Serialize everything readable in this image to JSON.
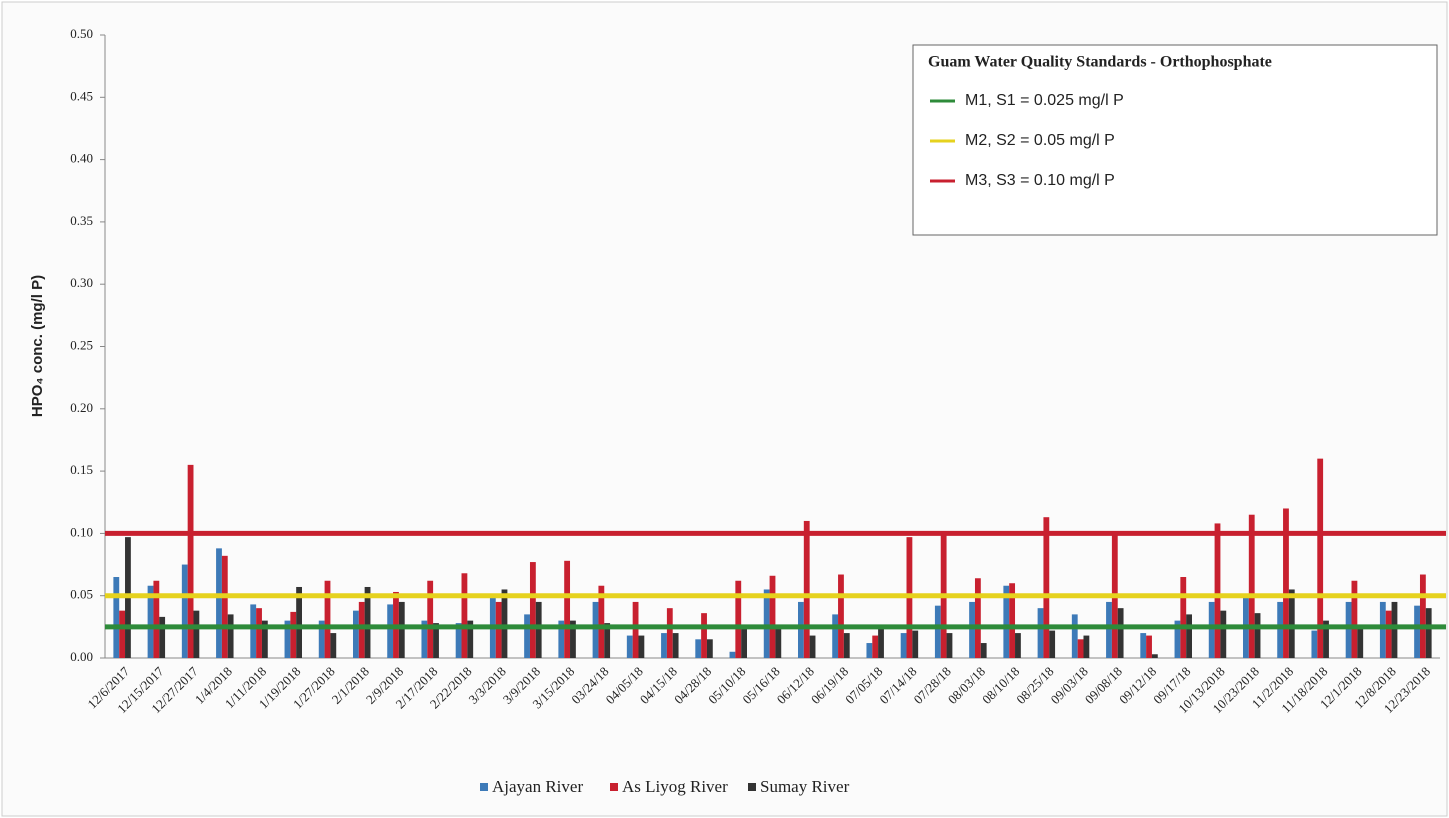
{
  "chart_data": {
    "type": "bar",
    "y_label": "HPO₄ conc. (mg/l P)",
    "legend_title": "Guam Water Quality Standards - Orthophosphate",
    "categories": [
      "12/6/2017",
      "12/15/2017",
      "12/27/2017",
      "1/4/2018",
      "1/11/2018",
      "1/19/2018",
      "1/27/2018",
      "2/1/2018",
      "2/9/2018",
      "2/17/2018",
      "2/22/2018",
      "3/3/2018",
      "3/9/2018",
      "3/15/2018",
      "03/24/18",
      "04/05/18",
      "04/15/18",
      "04/28/18",
      "05/10/18",
      "05/16/18",
      "06/12/18",
      "06/19/18",
      "07/05/18",
      "07/14/18",
      "07/28/18",
      "08/03/18",
      "08/10/18",
      "08/25/18",
      "09/03/18",
      "09/08/18",
      "09/12/18",
      "09/17/18",
      "10/13/2018",
      "10/23/2018",
      "11/2/2018",
      "11/18/2018",
      "12/1/2018",
      "12/8/2018",
      "12/23/2018"
    ],
    "series": [
      {
        "name": "Ajayan River",
        "color": "#3d7ab8",
        "values": [
          0.065,
          0.058,
          0.075,
          0.088,
          0.043,
          0.03,
          0.03,
          0.038,
          0.043,
          0.03,
          0.028,
          0.05,
          0.035,
          0.03,
          0.045,
          0.018,
          0.02,
          0.015,
          0.005,
          0.055,
          0.045,
          0.035,
          0.012,
          0.02,
          0.042,
          0.045,
          0.058,
          0.04,
          0.035,
          0.045,
          0.02,
          0.03,
          0.045,
          0.05,
          0.045,
          0.022,
          0.045,
          0.045,
          0.042
        ]
      },
      {
        "name": "As Liyog River",
        "color": "#c8202f",
        "values": [
          0.038,
          0.062,
          0.155,
          0.082,
          0.04,
          0.037,
          0.062,
          0.045,
          0.053,
          0.062,
          0.068,
          0.045,
          0.077,
          0.078,
          0.058,
          0.045,
          0.04,
          0.036,
          0.062,
          0.066,
          0.11,
          0.067,
          0.018,
          0.097,
          0.1,
          0.064,
          0.06,
          0.113,
          0.015,
          0.1,
          0.018,
          0.065,
          0.108,
          0.115,
          0.12,
          0.16,
          0.062,
          0.038,
          0.067
        ]
      },
      {
        "name": "Sumay River",
        "color": "#333333",
        "values": [
          0.097,
          0.033,
          0.038,
          0.035,
          0.03,
          0.057,
          0.02,
          0.057,
          0.045,
          0.028,
          0.03,
          0.055,
          0.045,
          0.03,
          0.028,
          0.018,
          0.02,
          0.015,
          0.025,
          0.025,
          0.018,
          0.02,
          0.025,
          0.022,
          0.02,
          0.012,
          0.02,
          0.022,
          0.018,
          0.04,
          0.003,
          0.035,
          0.038,
          0.036,
          0.055,
          0.03,
          0.025,
          0.045,
          0.04
        ]
      }
    ],
    "reference_lines": [
      {
        "name": "M1, S1 = 0.025 mg/l P",
        "value": 0.025,
        "color": "#2e8b3a"
      },
      {
        "name": "M2, S2 = 0.05 mg/l P",
        "value": 0.05,
        "color": "#e6d21e"
      },
      {
        "name": "M3, S3 = 0.10 mg/l P",
        "value": 0.1,
        "color": "#c8202f"
      }
    ],
    "ylim": [
      0,
      0.5
    ],
    "yticks": [
      {
        "value": 0,
        "label": "0.00"
      },
      {
        "value": 0.05,
        "label": "0.05"
      },
      {
        "value": 0.1,
        "label": "0.10"
      },
      {
        "value": 0.15,
        "label": "0.15"
      },
      {
        "value": 0.2,
        "label": "0.20"
      },
      {
        "value": 0.25,
        "label": "0.25"
      },
      {
        "value": 0.3,
        "label": "0.30"
      },
      {
        "value": 0.35,
        "label": "0.35"
      },
      {
        "value": 0.4,
        "label": "0.40"
      },
      {
        "value": 0.45,
        "label": "0.45"
      },
      {
        "value": 0.5,
        "label": "0.50"
      }
    ]
  }
}
